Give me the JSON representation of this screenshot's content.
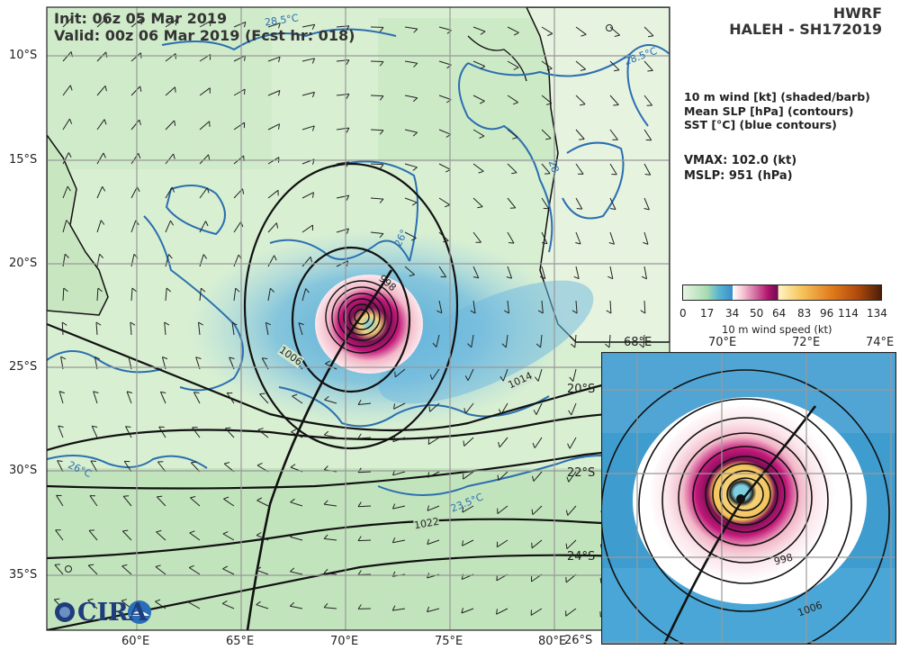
{
  "header": {
    "init": "Init:   06z 05 Mar 2019",
    "valid": "Valid: 00z 06 Mar 2019 (Fcst hr: 018)",
    "model": "HWRF",
    "storm": "HALEH - SH172019"
  },
  "legend": {
    "lines": [
      "10 m wind [kt] (shaded/barb)",
      "Mean SLP [hPa] (contours)",
      "SST [°C] (blue contours)"
    ],
    "vmax": "VMAX: 102.0 (kt)",
    "mslp": "MSLP:  951 (hPa)"
  },
  "colorbar": {
    "ticks": [
      "0",
      "17",
      "34",
      "50",
      "64",
      "83",
      "96",
      "114",
      "134"
    ],
    "label": "10 m wind speed (kt)"
  },
  "main_map": {
    "lon_labels": [
      "60°E",
      "65°E",
      "70°E",
      "75°E",
      "80°E"
    ],
    "lat_labels": [
      "10°S",
      "15°S",
      "20°S",
      "25°S",
      "30°S",
      "35°S"
    ],
    "slp_labels": [
      "1006",
      "998",
      "1014",
      "1022"
    ],
    "sst_labels": [
      "28.5°C",
      "28.5°C",
      "28.",
      "26°",
      "26°C",
      "23.5°C"
    ]
  },
  "inset_map": {
    "lon_labels": [
      "68°E",
      "70°E",
      "72°E",
      "74°E"
    ],
    "lat_labels": [
      "20°S",
      "22°S",
      "24°S",
      "26°S"
    ],
    "slp_labels": [
      "998",
      "1006"
    ]
  },
  "logo": {
    "text": "CIRA"
  },
  "colors": {
    "land_green": "#bfe3b6",
    "ocean_green": "#d6eecf",
    "sst_blue": "#2b6fb0",
    "slp_black": "#111111",
    "wind_34": "#4aa6d6",
    "wind_50": "#c2187a",
    "wind_64": "#f3d27a"
  }
}
